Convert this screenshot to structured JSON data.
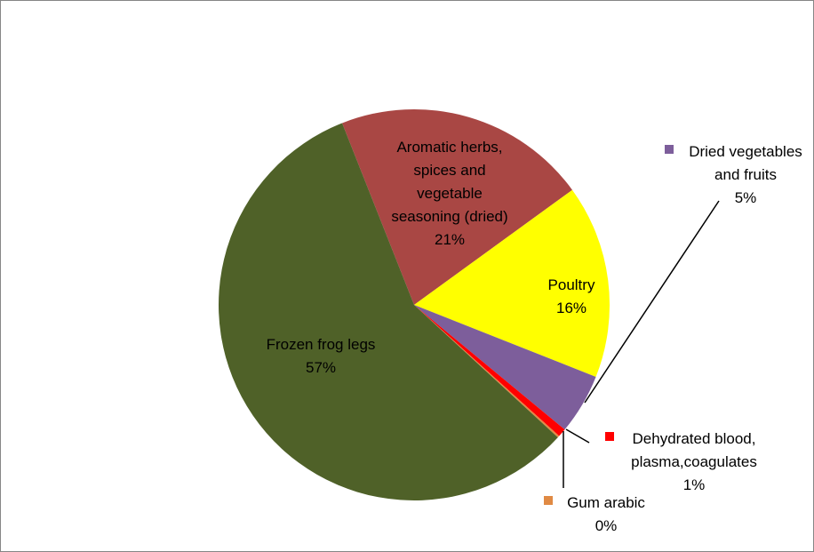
{
  "chart_data": {
    "type": "pie",
    "title": "",
    "slices": [
      {
        "name": "Aromatic herbs, spices and vegetable seasoning (dried)",
        "label_lines": [
          "Aromatic herbs,",
          "spices and",
          "vegetable",
          "seasoning (dried)"
        ],
        "percent_label": "21%",
        "value": 21.0,
        "color": "#A94744"
      },
      {
        "name": "Poultry",
        "label_lines": [
          "Poultry"
        ],
        "percent_label": "16%",
        "value": 16.0,
        "color": "#FFFF00"
      },
      {
        "name": "Dried vegetables and fruits",
        "label_lines": [
          "Dried vegetables",
          "and fruits"
        ],
        "percent_label": "5%",
        "value": 5.0,
        "color": "#7D5E9B"
      },
      {
        "name": "Dehydrated blood, plasma,coagulates",
        "label_lines": [
          "Dehydrated blood,",
          "plasma,coagulates"
        ],
        "percent_label": "1%",
        "value": 0.7,
        "color": "#FF0000"
      },
      {
        "name": "Gum arabic",
        "label_lines": [
          "Gum arabic"
        ],
        "percent_label": "0%",
        "value": 0.15,
        "color": "#E08A44"
      },
      {
        "name": "Frozen frog legs",
        "label_lines": [
          "Frozen frog legs"
        ],
        "percent_label": "57%",
        "value": 57.15,
        "color": "#4F6128"
      }
    ]
  }
}
